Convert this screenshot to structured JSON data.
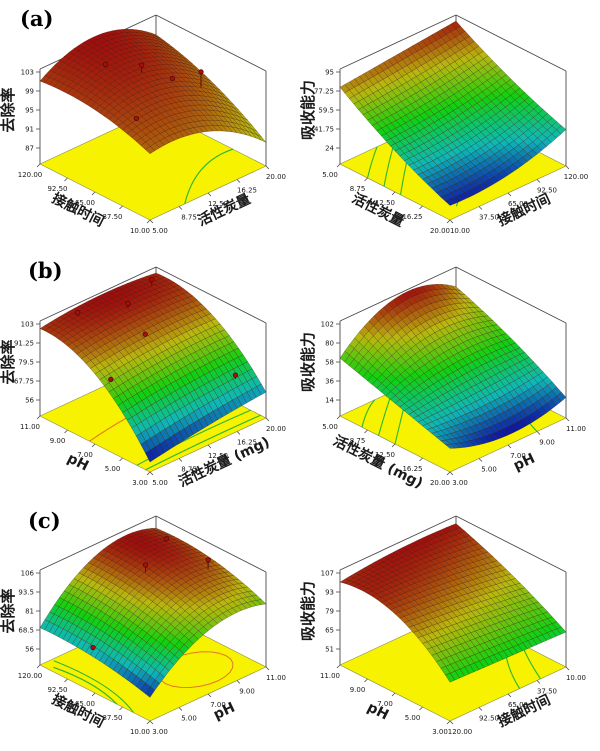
{
  "figure": {
    "background": "#ffffff"
  },
  "panels": [
    {
      "label": "(a)"
    },
    {
      "label": "(b)"
    },
    {
      "label": "(c)"
    }
  ],
  "palette": {
    "floor": "#f6f200",
    "floor_edge": "#8a8a4a",
    "box_line": "#4a4a4a",
    "mesh_line": "rgba(55,15,5,0.55)",
    "contour_green": "#2db52d",
    "contour_orange": "#e5781e",
    "design_point": "#a50f0f",
    "tick_text": "#1a1a1a"
  },
  "chart_data": [
    {
      "id": "a-left",
      "panel": "(a)",
      "position": "left",
      "type": "surface3d",
      "z_axis": {
        "label": "去除率",
        "ticks": [
          "103",
          "99",
          "95",
          "91",
          "87"
        ]
      },
      "left_axis": {
        "label": "接触时间",
        "ticks": [
          "120.00",
          "92.50",
          "65.00",
          "37.50",
          "10.00"
        ]
      },
      "right_axis": {
        "label": "活性炭量",
        "ticks": [
          "5.00",
          "8.75",
          "12.50",
          "16.25",
          "20.00"
        ]
      },
      "surface": {
        "corners": {
          "front": 0.66,
          "left": 0.88,
          "back": 0.78,
          "right": 0.1
        },
        "bumps": {
          "bu0": 0.1,
          "bu1": 0.1,
          "bv0": 0.22,
          "bv1": 0.3
        },
        "cmin": 0.7,
        "cmax": 1.0
      },
      "contours": [
        {
          "color": "green",
          "pts": [
            [
              0.0,
              0.3
            ],
            [
              0.35,
              0.72
            ],
            [
              0.3,
              1.0
            ]
          ]
        }
      ],
      "points": [
        {
          "u": 0.38,
          "v": 0.8,
          "dz": 0.2
        },
        {
          "u": 0.55,
          "v": 0.45,
          "dz": 0.1
        },
        {
          "u": 0.72,
          "v": 0.3,
          "dz": 0.03
        },
        {
          "u": 0.25,
          "v": 0.12,
          "dz": 0.02
        },
        {
          "u": 0.45,
          "v": 0.62,
          "dz": 0.0
        }
      ]
    },
    {
      "id": "a-right",
      "panel": "(a)",
      "position": "right",
      "type": "surface3d",
      "z_axis": {
        "label": "吸收能力",
        "ticks": [
          "95",
          "77.25",
          "59.5",
          "41.75",
          "24"
        ]
      },
      "left_axis": {
        "label": "活性炭量",
        "ticks": [
          "5.00",
          "8.75",
          "12.50",
          "16.25",
          "20.00"
        ]
      },
      "right_axis": {
        "label": "接触时间",
        "ticks": [
          "10.00",
          "37.50",
          "65.00",
          "92.50",
          "120.00"
        ]
      },
      "surface": {
        "corners": {
          "front": -0.02,
          "left": 0.8,
          "back": 0.96,
          "right": 0.27
        },
        "bumps": {
          "bu0": -0.06,
          "bu1": -0.05,
          "bv0": -0.1,
          "bv1": 0.0
        },
        "cmin": 0.03,
        "cmax": 0.97
      },
      "contours": [
        {
          "color": "green",
          "pts": [
            [
              0.75,
              0.0
            ],
            [
              0.9,
              0.18
            ],
            [
              1.0,
              0.32
            ]
          ]
        },
        {
          "color": "green",
          "pts": [
            [
              0.6,
              0.0
            ],
            [
              0.82,
              0.25
            ],
            [
              1.0,
              0.48
            ]
          ]
        },
        {
          "color": "green",
          "pts": [
            [
              0.45,
              0.0
            ],
            [
              0.72,
              0.3
            ],
            [
              1.0,
              0.64
            ]
          ]
        },
        {
          "color": "green",
          "pts": [
            [
              0.1,
              0.15
            ],
            [
              0.5,
              0.65
            ],
            [
              0.62,
              1.0
            ]
          ]
        }
      ],
      "points": []
    },
    {
      "id": "b-left",
      "panel": "(b)",
      "position": "left",
      "type": "surface3d",
      "z_axis": {
        "label": "去除率",
        "ticks": [
          "103",
          "91.25",
          "79.5",
          "67.75",
          "56"
        ]
      },
      "left_axis": {
        "label": "pH",
        "ticks": [
          "11.00",
          "9.00",
          "7.00",
          "5.00",
          "3.00"
        ]
      },
      "right_axis": {
        "label": "活性炭量 (mg)",
        "ticks": [
          "5.00",
          "8.75",
          "12.50",
          "16.25",
          "20.00"
        ]
      },
      "surface": {
        "corners": {
          "front": -0.08,
          "left": 0.94,
          "back": 0.96,
          "right": 0.13
        },
        "bumps": {
          "bu0": 0.28,
          "bu1": 0.25,
          "bv0": 0.02,
          "bv1": 0.06
        },
        "cmin": 0.0,
        "cmax": 1.0
      },
      "contours": [
        {
          "color": "orange",
          "pts": [
            [
              0.55,
              0.0
            ],
            [
              0.65,
              0.5
            ],
            [
              0.62,
              1.0
            ]
          ]
        },
        {
          "color": "green",
          "pts": [
            [
              0.12,
              0.0
            ],
            [
              0.16,
              0.5
            ],
            [
              0.14,
              1.0
            ]
          ]
        },
        {
          "color": "green",
          "pts": [
            [
              0.04,
              0.0
            ],
            [
              0.06,
              0.5
            ],
            [
              0.05,
              1.0
            ]
          ]
        }
      ],
      "points": [
        {
          "u": 0.92,
          "v": 0.25,
          "dz": 0.04
        },
        {
          "u": 0.78,
          "v": 0.55,
          "dz": 0.06
        },
        {
          "u": 0.88,
          "v": 0.85,
          "dz": 0.08
        },
        {
          "u": 0.55,
          "v": 0.48,
          "dz": 0.02
        },
        {
          "u": 0.42,
          "v": 0.06,
          "dz": 0.02
        },
        {
          "u": 0.12,
          "v": 0.85,
          "dz": 0.05
        }
      ]
    },
    {
      "id": "b-right",
      "panel": "(b)",
      "position": "right",
      "type": "surface3d",
      "z_axis": {
        "label": "吸收能力",
        "ticks": [
          "102",
          "80",
          "58",
          "36",
          "14"
        ]
      },
      "left_axis": {
        "label": "活性炭量 (mg)",
        "ticks": [
          "5.00",
          "8.75",
          "12.50",
          "16.25",
          "20.00"
        ]
      },
      "right_axis": {
        "label": "pH",
        "ticks": [
          "3.00",
          "5.00",
          "7.00",
          "9.00",
          "11.00"
        ]
      },
      "surface": {
        "corners": {
          "front": 0.1,
          "left": 0.55,
          "back": 0.78,
          "right": 0.06
        },
        "bumps": {
          "bu0": 0.0,
          "bu1": 0.05,
          "bv0": -0.16,
          "bv1": 0.34
        },
        "cmin": 0.0,
        "cmax": 1.0
      },
      "contours": [
        {
          "color": "green",
          "pts": [
            [
              0.8,
              0.0
            ],
            [
              0.95,
              0.18
            ],
            [
              1.0,
              0.3
            ]
          ]
        },
        {
          "color": "green",
          "pts": [
            [
              0.65,
              0.0
            ],
            [
              0.85,
              0.25
            ],
            [
              1.0,
              0.45
            ]
          ]
        },
        {
          "color": "green",
          "pts": [
            [
              0.5,
              0.0
            ],
            [
              0.75,
              0.3
            ],
            [
              1.0,
              0.6
            ]
          ]
        },
        {
          "color": "green",
          "pts": [
            [
              0.0,
              0.75
            ],
            [
              0.3,
              0.85
            ],
            [
              0.45,
              1.0
            ]
          ]
        }
      ],
      "points": []
    },
    {
      "id": "c-left",
      "panel": "(c)",
      "position": "left",
      "type": "surface3d",
      "z_axis": {
        "label": "去除率",
        "ticks": [
          "106",
          "93.5",
          "81",
          "68.5",
          "56"
        ]
      },
      "left_axis": {
        "label": "接触时间",
        "ticks": [
          "120.00",
          "92.50",
          "65.00",
          "37.50",
          "10.00"
        ]
      },
      "right_axis": {
        "label": "pH",
        "ticks": [
          "3.00",
          "5.00",
          "7.00",
          "9.00",
          "11.00"
        ]
      },
      "surface": {
        "corners": {
          "front": 0.1,
          "left": 0.28,
          "back": 0.88,
          "right": 0.62
        },
        "bumps": {
          "bu0": 0.06,
          "bu1": 0.1,
          "bv0": 0.26,
          "bv1": 0.32
        },
        "cmin": 0.04,
        "cmax": 1.0
      },
      "contours": [
        {
          "color": "orange",
          "type": "ellipse",
          "cx": 0.28,
          "cy": 0.66,
          "ru": 0.2,
          "rv": 0.26
        },
        {
          "color": "green",
          "pts": [
            [
              0.3,
              0.0
            ],
            [
              0.6,
              0.1
            ],
            [
              0.92,
              0.04
            ]
          ]
        },
        {
          "color": "green",
          "pts": [
            [
              0.15,
              0.0
            ],
            [
              0.5,
              0.16
            ],
            [
              0.98,
              0.1
            ]
          ]
        }
      ],
      "points": [
        {
          "u": 0.62,
          "v": 0.55,
          "dz": 0.1
        },
        {
          "u": 0.4,
          "v": 0.88,
          "dz": 0.12
        },
        {
          "u": 0.78,
          "v": 0.88,
          "dz": 0.04
        },
        {
          "u": 0.55,
          "v": 0.03,
          "dz": 0.02
        }
      ]
    },
    {
      "id": "c-right",
      "panel": "(c)",
      "position": "right",
      "type": "surface3d",
      "z_axis": {
        "label": "吸收能力",
        "ticks": [
          "107",
          "93",
          "79",
          "65",
          "51"
        ]
      },
      "left_axis": {
        "label": "pH",
        "ticks": [
          "11.00",
          "9.00",
          "7.00",
          "5.00",
          "3.00"
        ]
      },
      "right_axis": {
        "label": "接触时间",
        "ticks": [
          "120.00",
          "92.50",
          "65.00",
          "37.50",
          "10.00"
        ]
      },
      "surface": {
        "corners": {
          "front": 0.3,
          "left": 0.88,
          "back": 0.94,
          "right": 0.25
        },
        "bumps": {
          "bu0": 0.24,
          "bu1": 0.05,
          "bv0": 0.0,
          "bv1": 0.04
        },
        "cmin": 0.45,
        "cmax": 1.0
      },
      "contours": [
        {
          "color": "green",
          "pts": [
            [
              0.0,
              0.6
            ],
            [
              0.3,
              0.75
            ],
            [
              0.5,
              0.95
            ]
          ]
        },
        {
          "color": "green",
          "pts": [
            [
              0.0,
              0.78
            ],
            [
              0.25,
              0.9
            ],
            [
              0.4,
              1.0
            ]
          ]
        }
      ],
      "points": []
    }
  ]
}
